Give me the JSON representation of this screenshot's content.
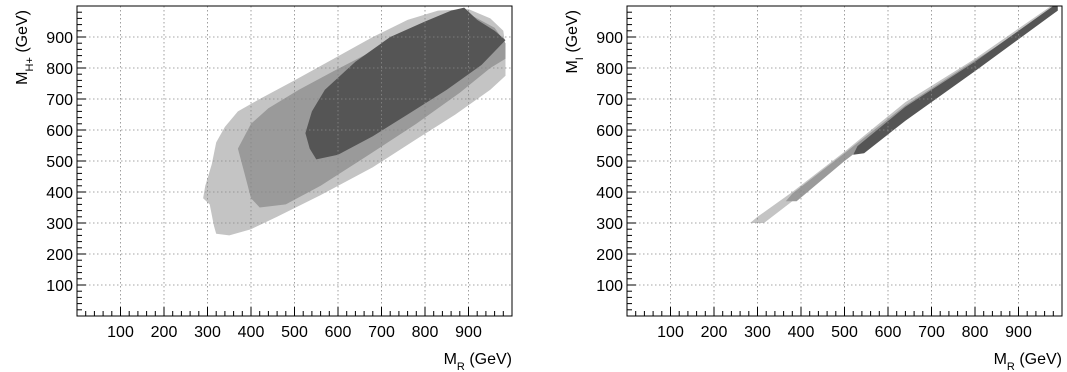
{
  "chart_data": [
    {
      "type": "contour",
      "xlabel": {
        "main": "M",
        "sub": "R",
        "unit": " (GeV)"
      },
      "ylabel": {
        "main": "M",
        "sub": "H+",
        "unit": " (GeV)"
      },
      "xlim": [
        0,
        1000
      ],
      "ylim": [
        0,
        1000
      ],
      "xticks": [
        100,
        200,
        300,
        400,
        500,
        600,
        700,
        800,
        900
      ],
      "yticks": [
        100,
        200,
        300,
        400,
        500,
        600,
        700,
        800,
        900
      ],
      "grid": true,
      "regions": [
        {
          "level": "outer",
          "color": "#c4c4c4",
          "polygon": [
            [
              290,
              380
            ],
            [
              305,
              360
            ],
            [
              315,
              290
            ],
            [
              320,
              265
            ],
            [
              350,
              260
            ],
            [
              400,
              280
            ],
            [
              460,
              320
            ],
            [
              560,
              390
            ],
            [
              680,
              480
            ],
            [
              780,
              570
            ],
            [
              870,
              650
            ],
            [
              950,
              730
            ],
            [
              985,
              775
            ],
            [
              985,
              870
            ],
            [
              980,
              920
            ],
            [
              950,
              960
            ],
            [
              900,
              990
            ],
            [
              830,
              985
            ],
            [
              760,
              955
            ],
            [
              680,
              900
            ],
            [
              590,
              830
            ],
            [
              500,
              760
            ],
            [
              420,
              700
            ],
            [
              370,
              660
            ],
            [
              340,
              610
            ],
            [
              320,
              560
            ],
            [
              310,
              490
            ],
            [
              295,
              420
            ]
          ]
        },
        {
          "level": "middle",
          "color": "#9a9a9a",
          "polygon": [
            [
              370,
              540
            ],
            [
              385,
              460
            ],
            [
              400,
              380
            ],
            [
              420,
              350
            ],
            [
              480,
              360
            ],
            [
              560,
              420
            ],
            [
              660,
              510
            ],
            [
              780,
              620
            ],
            [
              880,
              720
            ],
            [
              950,
              800
            ],
            [
              985,
              830
            ],
            [
              985,
              880
            ],
            [
              960,
              930
            ],
            [
              900,
              975
            ],
            [
              840,
              960
            ],
            [
              770,
              920
            ],
            [
              680,
              855
            ],
            [
              590,
              790
            ],
            [
              510,
              730
            ],
            [
              440,
              670
            ],
            [
              400,
              620
            ]
          ]
        },
        {
          "level": "inner",
          "color": "#555555",
          "polygon": [
            [
              525,
              590
            ],
            [
              535,
              540
            ],
            [
              550,
              505
            ],
            [
              600,
              520
            ],
            [
              680,
              580
            ],
            [
              760,
              650
            ],
            [
              850,
              730
            ],
            [
              930,
              810
            ],
            [
              985,
              890
            ],
            [
              960,
              920
            ],
            [
              920,
              955
            ],
            [
              890,
              995
            ],
            [
              860,
              985
            ],
            [
              800,
              950
            ],
            [
              720,
              900
            ],
            [
              640,
              820
            ],
            [
              570,
              730
            ],
            [
              540,
              660
            ]
          ]
        }
      ]
    },
    {
      "type": "contour",
      "xlabel": {
        "main": "M",
        "sub": "R",
        "unit": " (GeV)"
      },
      "ylabel": {
        "main": "M",
        "sub": "I",
        "unit": " (GeV)"
      },
      "xlim": [
        0,
        1000
      ],
      "ylim": [
        0,
        1000
      ],
      "xticks": [
        100,
        200,
        300,
        400,
        500,
        600,
        700,
        800,
        900
      ],
      "yticks": [
        100,
        200,
        300,
        400,
        500,
        600,
        700,
        800,
        900
      ],
      "grid": true,
      "regions": [
        {
          "level": "outer",
          "color": "#c4c4c4",
          "polygon": [
            [
              283,
              300
            ],
            [
              315,
              300
            ],
            [
              380,
              370
            ],
            [
              500,
              510
            ],
            [
              640,
              670
            ],
            [
              800,
              820
            ],
            [
              990,
              985
            ],
            [
              990,
              1000
            ],
            [
              975,
              1000
            ],
            [
              800,
              830
            ],
            [
              640,
              690
            ],
            [
              500,
              530
            ],
            [
              380,
              400
            ],
            [
              300,
              320
            ]
          ]
        },
        {
          "level": "middle",
          "color": "#9a9a9a",
          "polygon": [
            [
              365,
              370
            ],
            [
              390,
              370
            ],
            [
              500,
              500
            ],
            [
              640,
              650
            ],
            [
              800,
              805
            ],
            [
              990,
              985
            ],
            [
              990,
              995
            ],
            [
              800,
              825
            ],
            [
              640,
              680
            ],
            [
              500,
              525
            ],
            [
              380,
              395
            ]
          ]
        },
        {
          "level": "inner",
          "color": "#555555",
          "polygon": [
            [
              520,
              520
            ],
            [
              545,
              525
            ],
            [
              640,
              630
            ],
            [
              800,
              790
            ],
            [
              990,
              985
            ],
            [
              990,
              1000
            ],
            [
              980,
              1000
            ],
            [
              800,
              820
            ],
            [
              640,
              675
            ],
            [
              530,
              548
            ]
          ]
        }
      ]
    }
  ]
}
